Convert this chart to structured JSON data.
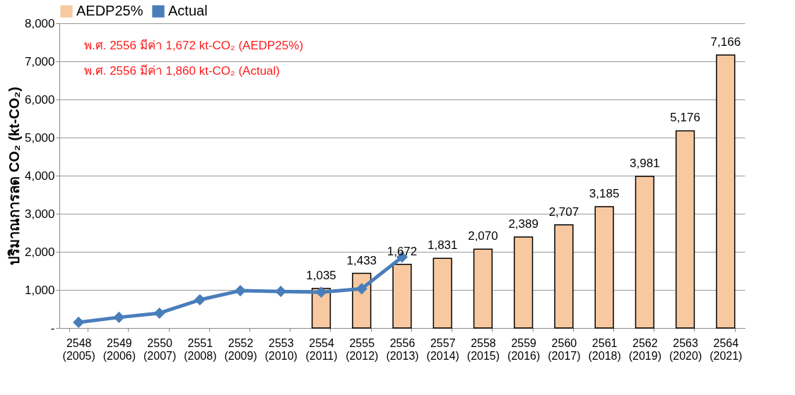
{
  "chart_data": {
    "type": "bar",
    "ylabel": "ปริมาณการลด CO₂ (kt-CO₂)",
    "categories": [
      "2548\n(2005)",
      "2549\n(2006)",
      "2550\n(2007)",
      "2551\n(2008)",
      "2552\n(2009)",
      "2553\n(2010)",
      "2554\n(2011)",
      "2555\n(2012)",
      "2556\n(2013)",
      "2557\n(2014)",
      "2558\n(2015)",
      "2559\n(2016)",
      "2560\n(2017)",
      "2561\n(2018)",
      "2562\n(2019)",
      "2563\n(2020)",
      "2564\n(2021)"
    ],
    "series": [
      {
        "name": "AEDP25%",
        "color": "#f8c9a0",
        "values": [
          null,
          null,
          null,
          null,
          null,
          null,
          1035,
          1433,
          1672,
          1831,
          2070,
          2389,
          2707,
          3185,
          3981,
          5176,
          7166
        ],
        "value_labels": [
          null,
          null,
          null,
          null,
          null,
          null,
          "1,035",
          "1,433",
          "1,672",
          "1,831",
          "2,070",
          "2,389",
          "2,707",
          "3,185",
          "3,981",
          "5,176",
          "7,166"
        ]
      },
      {
        "name": "Actual",
        "type": "line",
        "color": "#4a7ebb",
        "marker": "diamond",
        "values": [
          150,
          280,
          390,
          740,
          980,
          960,
          940,
          1030,
          1860,
          null,
          null,
          null,
          null,
          null,
          null,
          null,
          null
        ]
      }
    ],
    "ylim": [
      0,
      8000
    ],
    "yticks": [
      {
        "value": 0,
        "label": "-"
      },
      {
        "value": 1000,
        "label": "1,000"
      },
      {
        "value": 2000,
        "label": "2,000"
      },
      {
        "value": 3000,
        "label": "3,000"
      },
      {
        "value": 4000,
        "label": "4,000"
      },
      {
        "value": 5000,
        "label": "5,000"
      },
      {
        "value": 6000,
        "label": "6,000"
      },
      {
        "value": 7000,
        "label": "7,000"
      },
      {
        "value": 8000,
        "label": "8,000"
      }
    ],
    "grid": "y",
    "legend": "top",
    "annotations": [
      "พ.ศ. 2556 มีค่า 1,672 kt-CO₂ (AEDP25%)",
      "พ.ศ. 2556 มีค่า 1,860 kt-CO₂ (Actual)"
    ]
  }
}
